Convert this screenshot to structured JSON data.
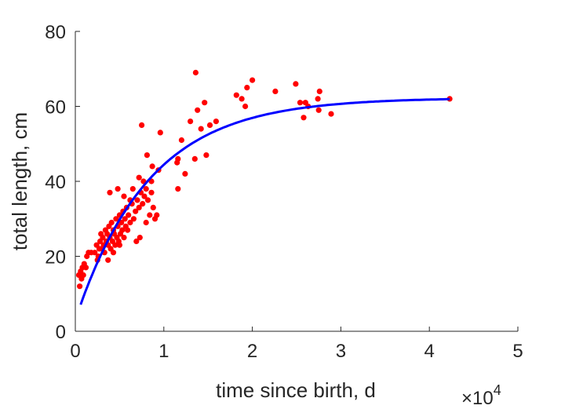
{
  "chart_data": {
    "type": "scatter",
    "xlabel": "time since birth, d",
    "ylabel": "total length, cm",
    "x_exponent_label": "×10",
    "x_exponent_power": "4",
    "xlim": [
      0,
      50000
    ],
    "ylim": [
      0,
      80
    ],
    "x_tick_labels": [
      "0",
      "1",
      "2",
      "3",
      "4",
      "5"
    ],
    "x_tick_values": [
      0,
      10000,
      20000,
      30000,
      40000,
      50000
    ],
    "y_tick_labels": [
      "0",
      "20",
      "40",
      "60",
      "80"
    ],
    "y_tick_values": [
      0,
      20,
      40,
      60,
      80
    ],
    "grid": false,
    "colors": {
      "points": "#ff0000",
      "fit": "#0000ff",
      "axis": "#262626"
    },
    "series": [
      {
        "kind": "points",
        "data": [
          [
            400,
            15
          ],
          [
            500,
            12
          ],
          [
            600,
            16
          ],
          [
            700,
            14
          ],
          [
            800,
            17
          ],
          [
            900,
            15
          ],
          [
            1000,
            18
          ],
          [
            1200,
            17
          ],
          [
            1300,
            20
          ],
          [
            1500,
            21
          ],
          [
            1800,
            21
          ],
          [
            2200,
            21
          ],
          [
            2400,
            23
          ],
          [
            2500,
            19
          ],
          [
            2600,
            20
          ],
          [
            2700,
            22
          ],
          [
            2800,
            24
          ],
          [
            2900,
            26
          ],
          [
            3000,
            22
          ],
          [
            3100,
            25
          ],
          [
            3200,
            23
          ],
          [
            3300,
            21
          ],
          [
            3400,
            27
          ],
          [
            3500,
            24
          ],
          [
            3600,
            26
          ],
          [
            3700,
            23
          ],
          [
            3800,
            28
          ],
          [
            3900,
            25
          ],
          [
            4000,
            22
          ],
          [
            4100,
            29
          ],
          [
            4200,
            24
          ],
          [
            4300,
            27
          ],
          [
            4400,
            26
          ],
          [
            4500,
            23
          ],
          [
            4600,
            30
          ],
          [
            4700,
            25
          ],
          [
            4800,
            28
          ],
          [
            4900,
            24
          ],
          [
            5000,
            31
          ],
          [
            5100,
            26
          ],
          [
            5200,
            29
          ],
          [
            5300,
            27
          ],
          [
            5400,
            32
          ],
          [
            5500,
            25
          ],
          [
            5600,
            30
          ],
          [
            5700,
            28
          ],
          [
            5800,
            33
          ],
          [
            5900,
            27
          ],
          [
            6000,
            31
          ],
          [
            6200,
            29
          ],
          [
            6400,
            34
          ],
          [
            6600,
            30
          ],
          [
            6800,
            32
          ],
          [
            7000,
            35
          ],
          [
            7200,
            33
          ],
          [
            7400,
            37
          ],
          [
            7600,
            34
          ],
          [
            7800,
            36
          ],
          [
            8000,
            38
          ],
          [
            8200,
            35
          ],
          [
            8400,
            31
          ],
          [
            8600,
            37
          ],
          [
            8800,
            33
          ],
          [
            9000,
            30
          ],
          [
            9200,
            31
          ],
          [
            9400,
            43
          ],
          [
            3900,
            37
          ],
          [
            4800,
            38
          ],
          [
            5500,
            36
          ],
          [
            6500,
            38
          ],
          [
            7200,
            41
          ],
          [
            7700,
            40
          ],
          [
            8100,
            47
          ],
          [
            7500,
            55
          ],
          [
            9600,
            53
          ],
          [
            8700,
            44
          ],
          [
            6900,
            24
          ],
          [
            7300,
            25
          ],
          [
            4300,
            21
          ],
          [
            5000,
            23
          ],
          [
            3700,
            19
          ],
          [
            8000,
            29
          ],
          [
            8600,
            40
          ],
          [
            6200,
            35
          ],
          [
            11500,
            45
          ],
          [
            11600,
            38
          ],
          [
            12000,
            51
          ],
          [
            12400,
            42
          ],
          [
            13000,
            56
          ],
          [
            13500,
            46
          ],
          [
            13800,
            59
          ],
          [
            14200,
            54
          ],
          [
            14600,
            61
          ],
          [
            14800,
            47
          ],
          [
            15200,
            55
          ],
          [
            15900,
            56
          ],
          [
            11600,
            46
          ],
          [
            13600,
            69
          ],
          [
            18200,
            63
          ],
          [
            18800,
            62
          ],
          [
            19200,
            60
          ],
          [
            19400,
            65
          ],
          [
            20000,
            67
          ],
          [
            22600,
            64
          ],
          [
            24900,
            66
          ],
          [
            25400,
            61
          ],
          [
            25800,
            57
          ],
          [
            26000,
            61
          ],
          [
            26300,
            60
          ],
          [
            27400,
            62
          ],
          [
            27600,
            64
          ],
          [
            28900,
            58
          ],
          [
            27500,
            59
          ],
          [
            42300,
            62
          ]
        ]
      },
      {
        "kind": "fit",
        "model": "von Bertalanffy",
        "L_inf": 62.3,
        "L0": 3.0,
        "rate_per_day": 0.00012,
        "x_start": 600,
        "x_end": 42300
      }
    ]
  }
}
